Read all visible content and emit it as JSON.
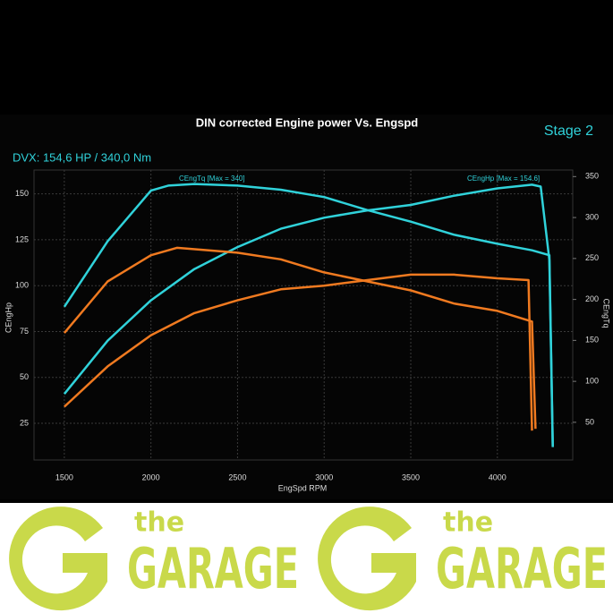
{
  "chart_data": {
    "type": "line",
    "title": "DIN corrected Engine power Vs. Engspd",
    "subtitle": "DVX:  154,6 HP / 340,0 Nm",
    "badge": "Stage 2",
    "xlabel": "EngSpd RPM",
    "ylabel": "CEngHp",
    "y2label": "CEngTq",
    "annotations": [
      "CEngTq [Max = 340]",
      "CEngHp [Max = 154.6]"
    ],
    "xlim": [
      1325,
      4435
    ],
    "ylim": [
      5,
      163
    ],
    "y2lim": [
      4,
      358
    ],
    "xticks": [
      1500,
      2000,
      2500,
      3000,
      3500,
      4000
    ],
    "yticks": [
      25,
      50,
      75,
      100,
      125,
      150
    ],
    "y2ticks": [
      50,
      100,
      150,
      200,
      250,
      300,
      350
    ],
    "grid": true,
    "series": [
      {
        "color": "#30d2da",
        "axis": "y2",
        "x": [
          1500,
          1750,
          2000,
          2100,
          2250,
          2500,
          2750,
          3000,
          3250,
          3500,
          3750,
          4000,
          4200,
          4300,
          4320
        ],
        "values": [
          191,
          271,
          333,
          339,
          341,
          339,
          334,
          325,
          309,
          295,
          279,
          268,
          260,
          254,
          21
        ]
      },
      {
        "color": "#30d2da",
        "x": [
          1500,
          1750,
          2000,
          2250,
          2500,
          2750,
          3000,
          3250,
          3500,
          3750,
          4000,
          4200,
          4250,
          4300,
          4320
        ],
        "values": [
          41,
          70,
          92,
          109,
          121,
          131,
          137,
          141,
          144,
          149,
          153,
          155,
          154,
          114,
          12
        ]
      },
      {
        "color": "#f07a20",
        "axis": "y2",
        "x": [
          1500,
          1750,
          2000,
          2150,
          2500,
          2750,
          3000,
          3250,
          3500,
          3750,
          4000,
          4200,
          4220
        ],
        "values": [
          159,
          222,
          254,
          263,
          257,
          249,
          233,
          222,
          211,
          195,
          186,
          173,
          42
        ]
      },
      {
        "color": "#f07a20",
        "x": [
          1500,
          1750,
          2000,
          2250,
          2500,
          2750,
          3000,
          3250,
          3500,
          3750,
          4000,
          4180,
          4200
        ],
        "values": [
          34,
          56,
          73,
          85,
          92,
          98,
          100,
          103,
          106,
          106,
          104,
          103,
          21
        ]
      }
    ]
  },
  "banner": {
    "logos": [
      {
        "small": "the",
        "big": "GARAGE"
      },
      {
        "small": "the",
        "big": "GARAGE"
      }
    ]
  }
}
